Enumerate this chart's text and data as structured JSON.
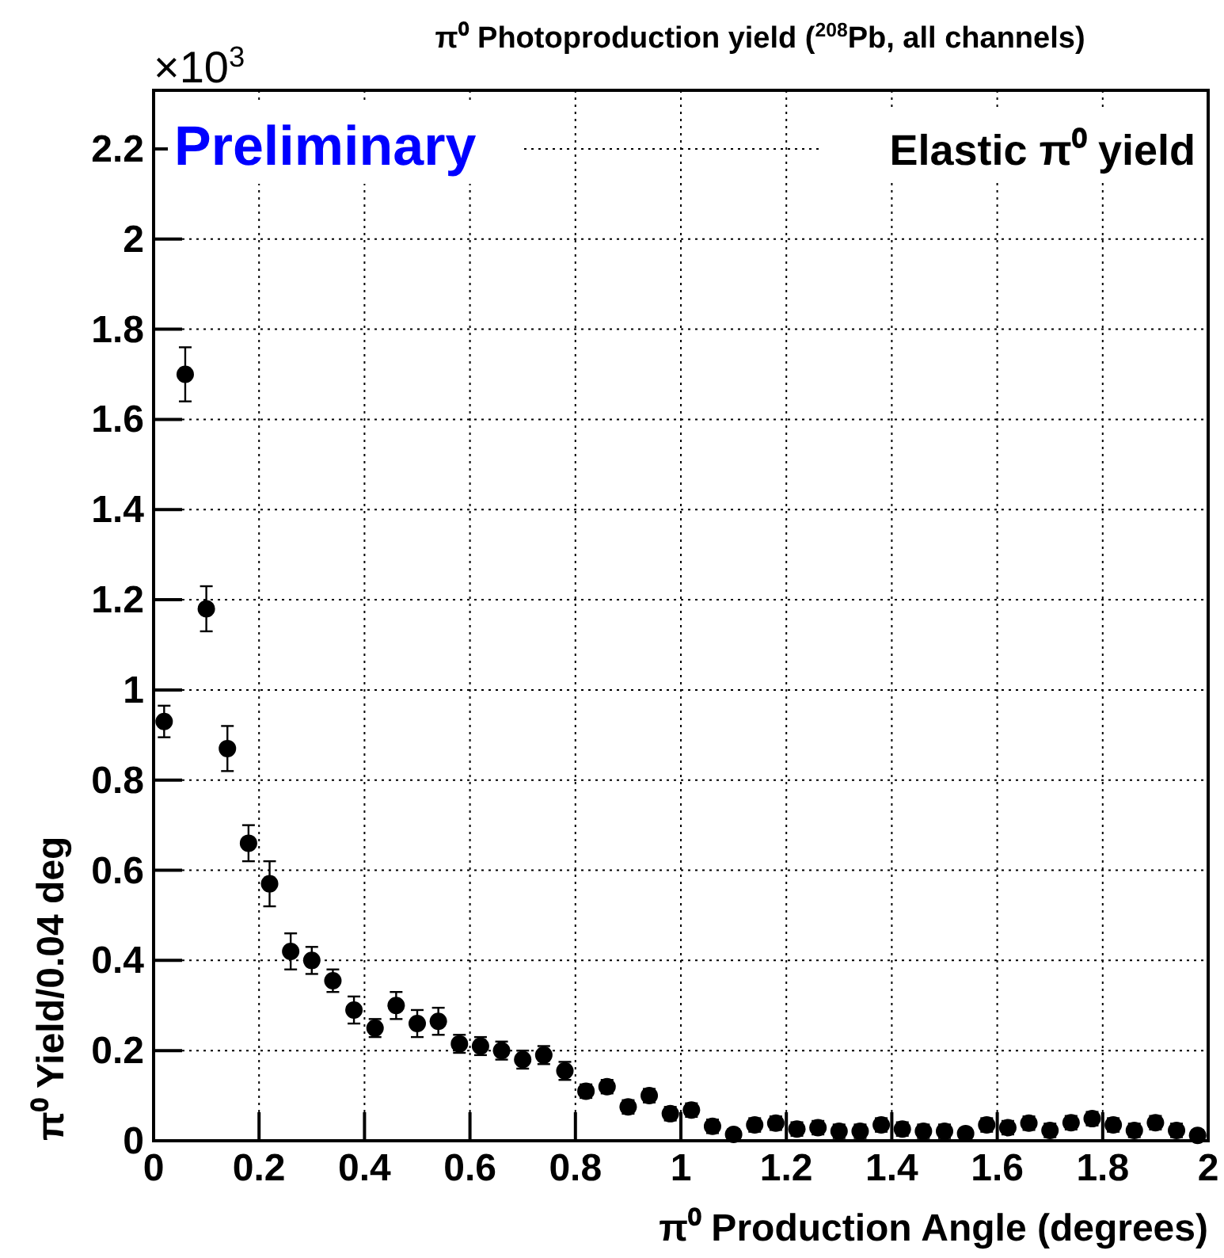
{
  "chart_data": {
    "type": "scatter",
    "title": "π⁰ Photoproduction yield ($^{208}$Pb, all channels)",
    "xlabel": "π⁰ Production Angle (degrees)",
    "ylabel": "π⁰ Yield/0.04 deg",
    "annotations": [
      "Preliminary",
      "Elastic π⁰ yield",
      "×10$^{3}$"
    ],
    "x": [
      0.02,
      0.06,
      0.1,
      0.14,
      0.18,
      0.22,
      0.26,
      0.3,
      0.34,
      0.38,
      0.42,
      0.46,
      0.5,
      0.54,
      0.58,
      0.62,
      0.66,
      0.7,
      0.74,
      0.78,
      0.82,
      0.86,
      0.9,
      0.94,
      0.98,
      1.02,
      1.06,
      1.1,
      1.14,
      1.18,
      1.22,
      1.26,
      1.3,
      1.34,
      1.38,
      1.42,
      1.46,
      1.5,
      1.54,
      1.58,
      1.62,
      1.66,
      1.7,
      1.74,
      1.78,
      1.82,
      1.86,
      1.9,
      1.94,
      1.98
    ],
    "series": [
      {
        "color": "#000000",
        "values": [
          0.93,
          1.7,
          1.18,
          0.87,
          0.66,
          0.57,
          0.42,
          0.4,
          0.355,
          0.29,
          0.25,
          0.3,
          0.26,
          0.265,
          0.215,
          0.21,
          0.2,
          0.18,
          0.19,
          0.155,
          0.11,
          0.12,
          0.075,
          0.1,
          0.06,
          0.068,
          0.032,
          0.014,
          0.035,
          0.039,
          0.026,
          0.029,
          0.021,
          0.021,
          0.035,
          0.026,
          0.021,
          0.021,
          0.016,
          0.035,
          0.029,
          0.039,
          0.023,
          0.04,
          0.049,
          0.035,
          0.023,
          0.04,
          0.023,
          0.012
        ],
        "errors": [
          0.035,
          0.06,
          0.05,
          0.05,
          0.04,
          0.05,
          0.04,
          0.03,
          0.025,
          0.03,
          0.02,
          0.03,
          0.03,
          0.03,
          0.02,
          0.02,
          0.02,
          0.02,
          0.02,
          0.02,
          0.015,
          0.015,
          0.015,
          0.015,
          0.015,
          0.015,
          0.015,
          0.012,
          0.015,
          0.015,
          0.015,
          0.015,
          0.015,
          0.015,
          0.015,
          0.015,
          0.015,
          0.015,
          0.012,
          0.015,
          0.015,
          0.015,
          0.015,
          0.015,
          0.015,
          0.015,
          0.015,
          0.015,
          0.015,
          0.012
        ]
      }
    ],
    "xlim": [
      0,
      2
    ],
    "ylim": [
      0,
      2.33
    ],
    "xticks": [
      0,
      0.2,
      0.4,
      0.6,
      0.8,
      1,
      1.2,
      1.4,
      1.6,
      1.8,
      2
    ],
    "yticks": [
      0,
      0.2,
      0.4,
      0.6,
      0.8,
      1,
      1.2,
      1.4,
      1.6,
      1.8,
      2,
      2.2
    ],
    "grid": true,
    "marker": "circle"
  }
}
